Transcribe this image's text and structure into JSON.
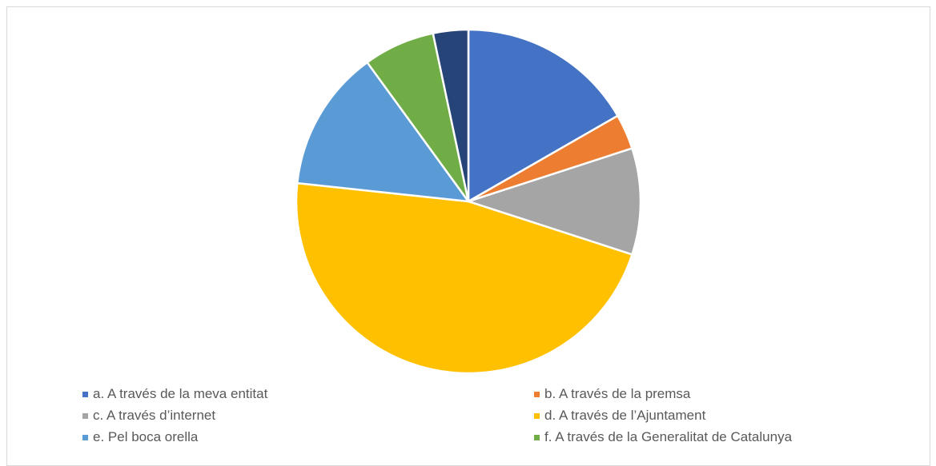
{
  "chart_data": {
    "type": "pie",
    "title": "",
    "legend_position": "bottom",
    "slices": [
      {
        "label": "a. A través de la meva entitat",
        "value": 16.7,
        "color": "#4472C4"
      },
      {
        "label": "b. A través de la premsa",
        "value": 3.3,
        "color": "#ED7D31"
      },
      {
        "label": "c. A través d’internet",
        "value": 10.0,
        "color": "#A5A5A5"
      },
      {
        "label": "d. A través de l’Ajuntament",
        "value": 46.7,
        "color": "#FFC000"
      },
      {
        "label": "e. Pel boca orella",
        "value": 13.3,
        "color": "#5B9BD5"
      },
      {
        "label": "f. A través de la Generalitat de Catalunya",
        "value": 6.7,
        "color": "#70AD47"
      },
      {
        "label": "",
        "value": 3.3,
        "color": "#264478"
      }
    ]
  }
}
